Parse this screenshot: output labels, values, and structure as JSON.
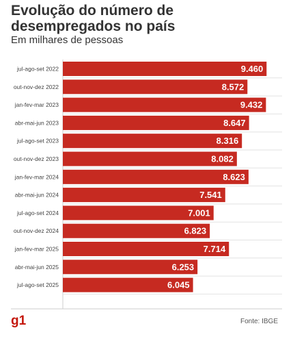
{
  "title": "Evolução do número de desempregados no país",
  "subtitle": "Em milhares de pessoas",
  "logo": "g1",
  "source": "Fonte: IBGE",
  "colors": {
    "bar": "#c62a21",
    "label": "#ffffff",
    "tick": "#444444",
    "grid": "#e2e2e2"
  },
  "chart_data": {
    "type": "bar",
    "orientation": "horizontal",
    "categories": [
      "jul-ago-set 2022",
      "out-nov-dez 2022",
      "jan-fev-mar 2023",
      "abr-mai-jun 2023",
      "jul-ago-set 2023",
      "out-nov-dez 2023",
      "jan-fev-mar 2024",
      "abr-mai-jun 2024",
      "jul-ago-set 2024",
      "out-nov-dez 2024",
      "jan-fev-mar 2025",
      "abr-mai-jun 2025",
      "jul-ago-set 2025"
    ],
    "values": [
      9460,
      8572,
      9432,
      8647,
      8316,
      8082,
      8623,
      7541,
      7001,
      6823,
      7714,
      6253,
      6045
    ],
    "value_labels": [
      "9.460",
      "8.572",
      "9.432",
      "8.647",
      "8.316",
      "8.082",
      "8.623",
      "7.541",
      "7.001",
      "6.823",
      "7.714",
      "6.253",
      "6.045"
    ],
    "xlim": [
      0,
      9800
    ],
    "grid": true
  }
}
